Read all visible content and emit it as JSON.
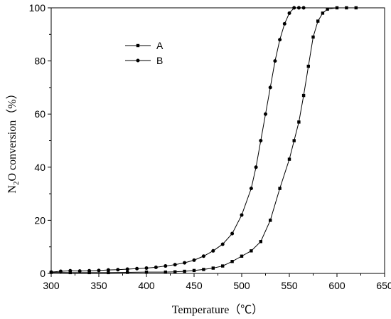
{
  "chart_data": {
    "type": "line",
    "xlabel": "Temperature（℃）",
    "ylabel": {
      "prefix": "N",
      "subscript": "2",
      "suffix": "O conversion（%）"
    },
    "xlim": [
      300,
      650
    ],
    "ylim": [
      0,
      100
    ],
    "x_ticks": [
      300,
      350,
      400,
      450,
      500,
      550,
      600,
      650
    ],
    "y_ticks": [
      0,
      20,
      40,
      60,
      80,
      100
    ],
    "x_tick_labels": [
      "300",
      "350",
      "400",
      "450",
      "500",
      "550",
      "600",
      "650"
    ],
    "y_tick_labels": [
      "0",
      "20",
      "40",
      "60",
      "80",
      "100"
    ],
    "legend": "top-left",
    "grid": false,
    "series": [
      {
        "name": "A",
        "marker": "square",
        "points": [
          [
            300,
            0.4
          ],
          [
            320,
            0.3
          ],
          [
            340,
            0.3
          ],
          [
            360,
            0.3
          ],
          [
            380,
            0.4
          ],
          [
            400,
            0.5
          ],
          [
            420,
            0.5
          ],
          [
            430,
            0.6
          ],
          [
            440,
            0.8
          ],
          [
            450,
            1.1
          ],
          [
            460,
            1.5
          ],
          [
            470,
            2.0
          ],
          [
            480,
            2.8
          ],
          [
            490,
            4.5
          ],
          [
            500,
            6.5
          ],
          [
            510,
            8.5
          ],
          [
            520,
            12.0
          ],
          [
            530,
            20.0
          ],
          [
            540,
            32.0
          ],
          [
            550,
            43.0
          ],
          [
            555,
            50.0
          ],
          [
            560,
            57.0
          ],
          [
            565,
            67.0
          ],
          [
            570,
            78.0
          ],
          [
            575,
            89.0
          ],
          [
            580,
            95.0
          ],
          [
            585,
            98.0
          ],
          [
            590,
            99.5
          ],
          [
            600,
            100
          ],
          [
            610,
            100
          ],
          [
            620,
            100
          ]
        ]
      },
      {
        "name": "B",
        "marker": "circle",
        "points": [
          [
            300,
            0.5
          ],
          [
            310,
            0.8
          ],
          [
            320,
            1.0
          ],
          [
            330,
            0.9
          ],
          [
            340,
            1.0
          ],
          [
            350,
            1.1
          ],
          [
            360,
            1.3
          ],
          [
            370,
            1.4
          ],
          [
            380,
            1.6
          ],
          [
            390,
            1.8
          ],
          [
            400,
            2.0
          ],
          [
            410,
            2.3
          ],
          [
            420,
            2.8
          ],
          [
            430,
            3.3
          ],
          [
            440,
            4.0
          ],
          [
            450,
            5.0
          ],
          [
            460,
            6.5
          ],
          [
            470,
            8.5
          ],
          [
            480,
            11.0
          ],
          [
            490,
            15.0
          ],
          [
            500,
            22.0
          ],
          [
            510,
            32.0
          ],
          [
            515,
            40.0
          ],
          [
            520,
            50.0
          ],
          [
            525,
            60.0
          ],
          [
            530,
            70.0
          ],
          [
            535,
            80.0
          ],
          [
            540,
            88.0
          ],
          [
            545,
            94.0
          ],
          [
            550,
            98.0
          ],
          [
            555,
            100
          ],
          [
            560,
            100
          ],
          [
            565,
            100
          ]
        ]
      }
    ]
  }
}
